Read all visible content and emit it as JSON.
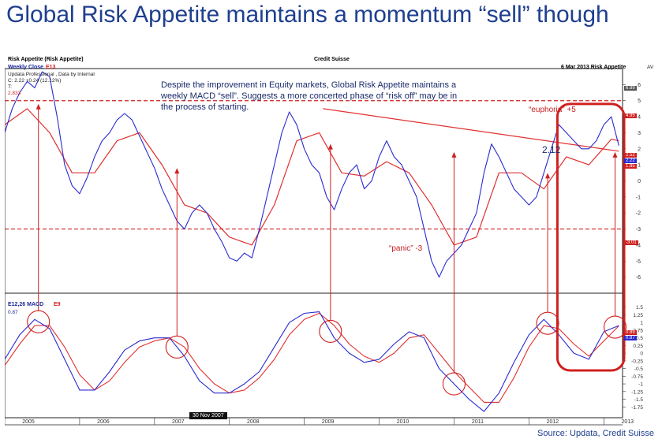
{
  "title": "Global Risk Appetite maintains a momentum “sell” though",
  "source": "Source: Updata, Credit Suisse",
  "header": {
    "left": "Risk Appetite (Risk Appetite)",
    "center": "Credit Suisse",
    "right": "6 Mar 2013  Risk Appetite",
    "corner": "AV",
    "upper_legend_a": "Weekly Close",
    "upper_legend_b": "E13",
    "info_line1": "Updata Professional , Data by Internal",
    "info_line2": "C: 2.22  +0.24 (12.12%)",
    "info_line3": "T:",
    "info_line4": "2.833",
    "lower_legend_a": "E12,26 MACD",
    "lower_legend_b": "E9",
    "lower_value": "0.87",
    "date_label": "30 Nov 2007"
  },
  "annotations": {
    "main": "Despite the improvement in Equity markets, Global Risk Appetite maintains a weekly MACD “sell”.  Suggests a more concerted phase of “risk off” may be in the process of starting.",
    "euphoria": "“euphoria” +5",
    "panic": "“panic” -3",
    "value_label": "2.12"
  },
  "tags": {
    "euphoria_level": "4.95",
    "panic_level": "-3.01",
    "last_blue": "2.22",
    "last_red": "2.52",
    "trend": "1.85",
    "macd_blue": "0.87",
    "macd_red": "0.89",
    "top": "6.89"
  },
  "colors": {
    "title": "#1f3f8f",
    "risk_line": "#2a2ad0",
    "ema_line": "#e03030",
    "threshold": "#d02020",
    "circle": "#d02020",
    "highlight_box": "#d02020"
  },
  "chart_data": [
    {
      "type": "line",
      "title": "Risk Appetite",
      "x_range": [
        2005.0,
        2013.25
      ],
      "ylim": [
        -7,
        7
      ],
      "y_ticks": [
        "6",
        "5",
        "4",
        "3",
        "2",
        "1",
        "0",
        "-1",
        "-2",
        "-3",
        "-4",
        "-5",
        "-6"
      ],
      "x_ticks": [
        "2005",
        "2006",
        "2007",
        "2008",
        "2009",
        "2010",
        "2011",
        "2012",
        "2013"
      ],
      "thresholds": [
        {
          "name": "“euphoria” +5",
          "value": 5
        },
        {
          "name": "“panic” -3",
          "value": -3
        }
      ],
      "trendline": {
        "x": [
          2009.25,
          2013.2
        ],
        "y": [
          4.5,
          1.85
        ]
      },
      "series": [
        {
          "name": "Weekly Close",
          "x": [
            2005.0,
            2005.1,
            2005.2,
            2005.3,
            2005.4,
            2005.5,
            2005.6,
            2005.7,
            2005.8,
            2005.9,
            2006.0,
            2006.1,
            2006.2,
            2006.3,
            2006.4,
            2006.5,
            2006.6,
            2006.7,
            2006.8,
            2006.9,
            2007.0,
            2007.1,
            2007.2,
            2007.3,
            2007.4,
            2007.5,
            2007.6,
            2007.7,
            2007.8,
            2007.9,
            2008.0,
            2008.1,
            2008.2,
            2008.3,
            2008.4,
            2008.5,
            2008.6,
            2008.7,
            2008.8,
            2008.9,
            2009.0,
            2009.1,
            2009.2,
            2009.3,
            2009.4,
            2009.5,
            2009.6,
            2009.7,
            2009.8,
            2009.9,
            2010.0,
            2010.1,
            2010.2,
            2010.3,
            2010.4,
            2010.5,
            2010.6,
            2010.7,
            2010.8,
            2010.9,
            2011.0,
            2011.1,
            2011.2,
            2011.3,
            2011.4,
            2011.5,
            2011.6,
            2011.7,
            2011.8,
            2011.9,
            2012.0,
            2012.1,
            2012.2,
            2012.3,
            2012.4,
            2012.5,
            2012.6,
            2012.7,
            2012.8,
            2012.9,
            2013.0,
            2013.1,
            2013.2
          ],
          "y": [
            3.0,
            4.5,
            5.5,
            6.2,
            5.8,
            6.8,
            6.5,
            4.0,
            1.0,
            -0.3,
            -0.8,
            0.2,
            1.5,
            2.5,
            3.0,
            3.8,
            4.2,
            3.8,
            2.8,
            1.8,
            0.8,
            -0.5,
            -1.5,
            -2.5,
            -3.0,
            -2.0,
            -1.5,
            -2.0,
            -3.0,
            -3.8,
            -4.8,
            -5.0,
            -4.5,
            -4.8,
            -3.0,
            -1.0,
            1.0,
            3.0,
            4.3,
            3.5,
            2.0,
            1.0,
            0.5,
            -1.0,
            -1.8,
            -0.5,
            0.5,
            1.0,
            -0.5,
            0.0,
            1.5,
            2.5,
            1.5,
            1.0,
            0.0,
            -1.0,
            -3.0,
            -5.0,
            -6.0,
            -5.0,
            -4.5,
            -4.0,
            -3.0,
            -2.0,
            0.5,
            2.3,
            1.5,
            0.5,
            -0.5,
            -1.0,
            -1.5,
            -1.0,
            0.5,
            2.0,
            3.5,
            3.0,
            2.5,
            2.0,
            2.0,
            2.5,
            3.5,
            4.0,
            2.2
          ]
        },
        {
          "name": "E13",
          "x": [
            2005.0,
            2005.3,
            2005.6,
            2005.9,
            2006.2,
            2006.5,
            2006.8,
            2007.1,
            2007.4,
            2007.7,
            2008.0,
            2008.3,
            2008.6,
            2008.9,
            2009.2,
            2009.5,
            2009.8,
            2010.1,
            2010.4,
            2010.7,
            2011.0,
            2011.3,
            2011.6,
            2011.9,
            2012.2,
            2012.5,
            2012.8,
            2013.1,
            2013.2
          ],
          "y": [
            3.5,
            4.5,
            3.0,
            0.5,
            0.5,
            2.5,
            3.0,
            1.0,
            -1.5,
            -2.0,
            -3.5,
            -4.0,
            -1.5,
            2.5,
            3.0,
            0.5,
            0.3,
            1.2,
            0.5,
            -1.5,
            -4.0,
            -3.5,
            0.5,
            0.5,
            -0.5,
            1.5,
            1.0,
            2.6,
            2.5
          ]
        }
      ]
    },
    {
      "type": "line",
      "title": "E12,26 MACD",
      "ylim": [
        -2.0,
        1.75
      ],
      "y_ticks": [
        "1.5",
        "1.25",
        "1",
        "0.75",
        "0.5",
        "0.25",
        "0",
        "-0.25",
        "-0.5",
        "-0.75",
        "-1",
        "-1.25",
        "-1.5",
        "-1.75"
      ],
      "sell_signals": [
        2005.45,
        2007.3,
        2009.35,
        2011.0,
        2012.25,
        2013.15
      ],
      "series": [
        {
          "name": "MACD",
          "x": [
            2005.0,
            2005.2,
            2005.4,
            2005.6,
            2005.8,
            2006.0,
            2006.2,
            2006.4,
            2006.6,
            2006.8,
            2007.0,
            2007.2,
            2007.4,
            2007.6,
            2007.8,
            2008.0,
            2008.2,
            2008.4,
            2008.6,
            2008.8,
            2009.0,
            2009.2,
            2009.4,
            2009.6,
            2009.8,
            2010.0,
            2010.2,
            2010.4,
            2010.6,
            2010.8,
            2011.0,
            2011.2,
            2011.4,
            2011.6,
            2011.8,
            2012.0,
            2012.2,
            2012.4,
            2012.6,
            2012.8,
            2013.0,
            2013.2
          ],
          "y": [
            -0.2,
            0.6,
            1.1,
            0.8,
            -0.2,
            -1.2,
            -1.2,
            -0.6,
            0.1,
            0.4,
            0.5,
            0.5,
            -0.1,
            -0.9,
            -1.3,
            -1.3,
            -1.0,
            -0.6,
            0.2,
            1.0,
            1.3,
            1.35,
            0.5,
            0.0,
            -0.3,
            -0.2,
            0.3,
            0.7,
            0.5,
            -0.5,
            -1.0,
            -1.5,
            -1.9,
            -1.3,
            -0.3,
            0.6,
            1.1,
            0.6,
            0.0,
            -0.2,
            0.7,
            0.9
          ]
        },
        {
          "name": "E9",
          "x": [
            2005.0,
            2005.2,
            2005.4,
            2005.6,
            2005.8,
            2006.0,
            2006.2,
            2006.4,
            2006.6,
            2006.8,
            2007.0,
            2007.2,
            2007.4,
            2007.6,
            2007.8,
            2008.0,
            2008.2,
            2008.4,
            2008.6,
            2008.8,
            2009.0,
            2009.2,
            2009.4,
            2009.6,
            2009.8,
            2010.0,
            2010.2,
            2010.4,
            2010.6,
            2010.8,
            2011.0,
            2011.2,
            2011.4,
            2011.6,
            2011.8,
            2012.0,
            2012.2,
            2012.4,
            2012.6,
            2012.8,
            2013.0,
            2013.2
          ],
          "y": [
            -0.4,
            0.3,
            0.9,
            0.9,
            0.2,
            -0.7,
            -1.2,
            -0.9,
            -0.3,
            0.2,
            0.4,
            0.5,
            0.2,
            -0.5,
            -1.0,
            -1.3,
            -1.2,
            -0.8,
            -0.2,
            0.6,
            1.1,
            1.3,
            0.9,
            0.3,
            -0.1,
            -0.3,
            0.0,
            0.5,
            0.6,
            0.0,
            -0.6,
            -1.1,
            -1.6,
            -1.6,
            -0.8,
            0.2,
            0.9,
            0.8,
            0.3,
            -0.1,
            0.4,
            0.89
          ]
        }
      ]
    }
  ]
}
